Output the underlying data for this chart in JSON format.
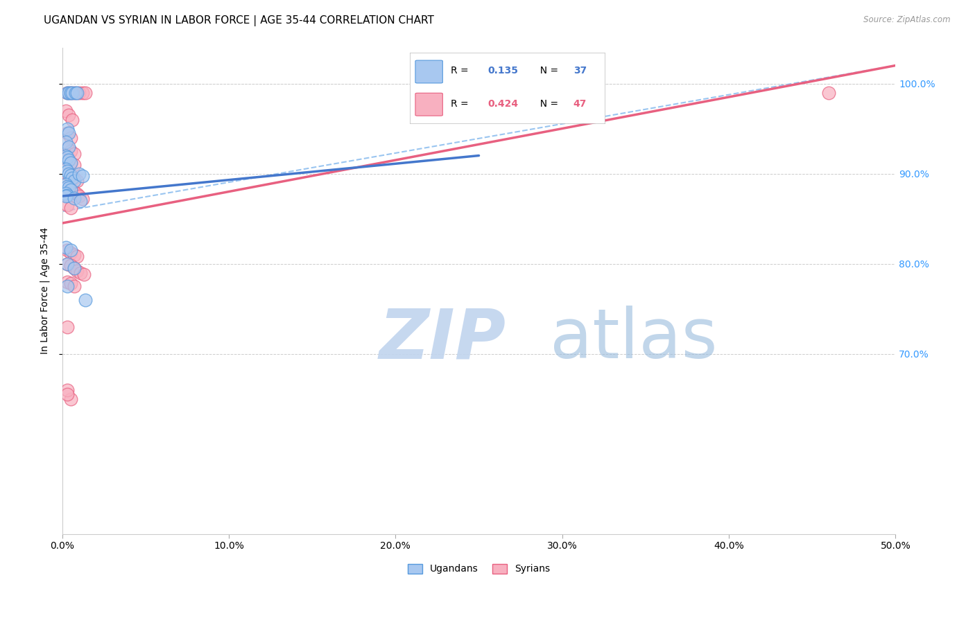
{
  "title": "UGANDAN VS SYRIAN IN LABOR FORCE | AGE 35-44 CORRELATION CHART",
  "source": "Source: ZipAtlas.com",
  "ylabel": "In Labor Force | Age 35-44",
  "xlim": [
    0.0,
    0.5
  ],
  "ylim": [
    0.5,
    1.04
  ],
  "xticklabels": [
    "0.0%",
    "10.0%",
    "20.0%",
    "30.0%",
    "40.0%",
    "50.0%"
  ],
  "xtick_vals": [
    0.0,
    0.1,
    0.2,
    0.3,
    0.4,
    0.5
  ],
  "ytick_positions": [
    0.7,
    0.8,
    0.9,
    1.0
  ],
  "ytick_labels": [
    "70.0%",
    "80.0%",
    "90.0%",
    "100.0%"
  ],
  "legend_R_blue": "0.135",
  "legend_N_blue": "37",
  "legend_R_pink": "0.424",
  "legend_N_pink": "47",
  "ugandan_color": "#A8C8F0",
  "ugandan_edge_color": "#5599DD",
  "syrian_color": "#F8B0C0",
  "syrian_edge_color": "#E86080",
  "blue_line_color": "#4477CC",
  "pink_line_color": "#E86080",
  "dashed_line_color": "#88BBEE",
  "watermark_zip_color": "#C0D4EE",
  "watermark_atlas_color": "#99BBDD",
  "background_color": "#FFFFFF",
  "grid_color": "#CCCCCC",
  "right_tick_color": "#3399FF",
  "ugandan_points": [
    [
      0.003,
      0.99
    ],
    [
      0.004,
      0.99
    ],
    [
      0.005,
      0.99
    ],
    [
      0.006,
      0.99
    ],
    [
      0.008,
      0.99
    ],
    [
      0.009,
      0.99
    ],
    [
      0.003,
      0.95
    ],
    [
      0.004,
      0.945
    ],
    [
      0.002,
      0.935
    ],
    [
      0.004,
      0.93
    ],
    [
      0.002,
      0.92
    ],
    [
      0.003,
      0.918
    ],
    [
      0.004,
      0.915
    ],
    [
      0.005,
      0.912
    ],
    [
      0.002,
      0.905
    ],
    [
      0.003,
      0.903
    ],
    [
      0.004,
      0.9
    ],
    [
      0.005,
      0.898
    ],
    [
      0.006,
      0.895
    ],
    [
      0.007,
      0.892
    ],
    [
      0.002,
      0.888
    ],
    [
      0.003,
      0.886
    ],
    [
      0.004,
      0.884
    ],
    [
      0.005,
      0.882
    ],
    [
      0.002,
      0.878
    ],
    [
      0.003,
      0.876
    ],
    [
      0.002,
      0.818
    ],
    [
      0.005,
      0.815
    ],
    [
      0.003,
      0.8
    ],
    [
      0.007,
      0.795
    ],
    [
      0.003,
      0.775
    ],
    [
      0.014,
      0.76
    ],
    [
      0.002,
      0.875
    ],
    [
      0.007,
      0.873
    ],
    [
      0.011,
      0.87
    ],
    [
      0.01,
      0.9
    ],
    [
      0.012,
      0.897
    ]
  ],
  "syrian_points": [
    [
      0.003,
      0.99
    ],
    [
      0.005,
      0.99
    ],
    [
      0.007,
      0.99
    ],
    [
      0.01,
      0.99
    ],
    [
      0.012,
      0.99
    ],
    [
      0.014,
      0.99
    ],
    [
      0.002,
      0.97
    ],
    [
      0.004,
      0.965
    ],
    [
      0.006,
      0.96
    ],
    [
      0.003,
      0.945
    ],
    [
      0.005,
      0.94
    ],
    [
      0.003,
      0.928
    ],
    [
      0.005,
      0.925
    ],
    [
      0.007,
      0.922
    ],
    [
      0.003,
      0.915
    ],
    [
      0.005,
      0.912
    ],
    [
      0.007,
      0.91
    ],
    [
      0.003,
      0.9
    ],
    [
      0.005,
      0.898
    ],
    [
      0.007,
      0.895
    ],
    [
      0.009,
      0.892
    ],
    [
      0.003,
      0.885
    ],
    [
      0.005,
      0.882
    ],
    [
      0.007,
      0.88
    ],
    [
      0.009,
      0.877
    ],
    [
      0.01,
      0.875
    ],
    [
      0.012,
      0.872
    ],
    [
      0.003,
      0.865
    ],
    [
      0.005,
      0.862
    ],
    [
      0.003,
      0.815
    ],
    [
      0.005,
      0.812
    ],
    [
      0.007,
      0.81
    ],
    [
      0.009,
      0.808
    ],
    [
      0.003,
      0.8
    ],
    [
      0.005,
      0.798
    ],
    [
      0.007,
      0.795
    ],
    [
      0.009,
      0.792
    ],
    [
      0.011,
      0.79
    ],
    [
      0.013,
      0.788
    ],
    [
      0.003,
      0.78
    ],
    [
      0.005,
      0.778
    ],
    [
      0.007,
      0.775
    ],
    [
      0.003,
      0.73
    ],
    [
      0.005,
      0.65
    ],
    [
      0.46,
      0.99
    ],
    [
      0.003,
      0.66
    ],
    [
      0.003,
      0.655
    ]
  ],
  "blue_line": {
    "x0": 0.0,
    "y0": 0.875,
    "x1": 0.25,
    "y1": 0.92
  },
  "blue_dash_line": {
    "x0": 0.0,
    "y0": 0.858,
    "x1": 0.5,
    "y1": 1.02
  },
  "pink_line": {
    "x0": 0.0,
    "y0": 0.845,
    "x1": 0.5,
    "y1": 1.02
  },
  "title_fontsize": 11,
  "label_fontsize": 10,
  "tick_fontsize": 10
}
